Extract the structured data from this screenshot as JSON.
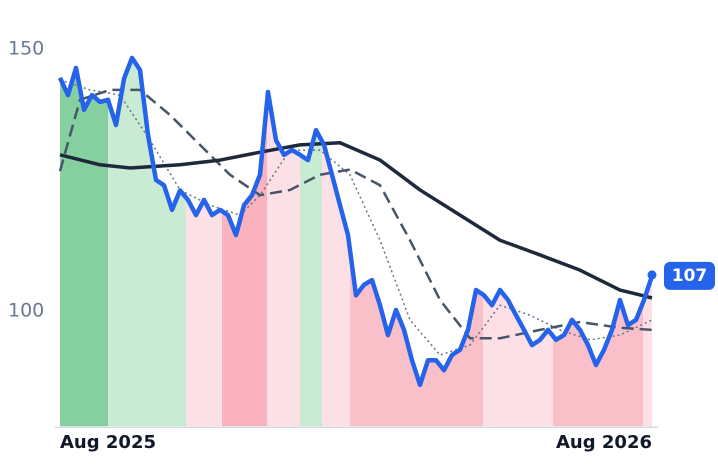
{
  "chart_data": {
    "type": "line",
    "x": [
      0,
      1,
      2,
      3,
      4,
      5,
      6,
      7,
      8,
      9,
      10,
      11,
      12,
      13,
      14,
      15,
      16,
      17,
      18,
      19,
      20,
      21,
      22,
      23,
      24,
      25,
      26,
      27,
      28,
      29,
      30,
      31,
      32,
      33,
      34,
      35,
      36,
      37,
      38,
      39,
      40,
      41,
      42,
      43,
      44,
      45,
      46,
      47,
      48,
      49,
      50,
      51,
      52,
      53,
      54,
      55,
      56,
      57,
      58,
      59,
      60,
      61,
      62,
      63,
      64,
      65,
      66,
      67,
      68,
      69,
      70,
      71,
      72,
      73,
      74
    ],
    "xlim": [
      0,
      74
    ],
    "xticks": [
      {
        "value": 0,
        "label": "Aug 2025"
      },
      {
        "value": 74,
        "label": "Aug 2026"
      }
    ],
    "ylim": [
      78,
      152
    ],
    "yticks": [
      100,
      150
    ],
    "series": [
      {
        "color": "#2563eb",
        "style": "solid",
        "width": 4.5,
        "values": [
          144.5,
          141.2,
          146.4,
          138.4,
          141.2,
          139.9,
          140.3,
          135.5,
          144.3,
          148.3,
          146,
          133.6,
          125,
          124,
          119.3,
          123,
          121.2,
          118.3,
          121.2,
          118.3,
          119.3,
          118.3,
          114.5,
          120.2,
          122.1,
          126,
          141.8,
          132.6,
          129.8,
          130.7,
          129.8,
          128.8,
          134.5,
          131.7,
          126,
          120.2,
          114.5,
          103,
          105,
          105.9,
          101.1,
          95.4,
          100.2,
          96.4,
          90.6,
          85.9,
          90.6,
          90.6,
          88.7,
          91.6,
          92.6,
          96.4,
          104,
          103,
          101.1,
          104,
          102.1,
          99.2,
          96.4,
          93.5,
          94.5,
          96.4,
          94.5,
          95.4,
          98.3,
          96.4,
          93.5,
          89.7,
          92.6,
          96.4,
          102.1,
          97.3,
          98.3,
          102.1,
          106.7
        ]
      },
      {
        "color": "#1e293b",
        "style": "solid",
        "width": 3.5,
        "x": [
          0,
          5,
          8.75,
          15,
          20,
          25,
          30,
          35,
          40,
          45,
          50,
          55,
          60,
          65,
          70,
          74
        ],
        "values": [
          129.8,
          127.9,
          127.3,
          127.9,
          128.8,
          130.3,
          131.7,
          132.1,
          128.8,
          123.1,
          118.3,
          113.5,
          110.7,
          107.8,
          104,
          102.5
        ]
      },
      {
        "color": "#475569",
        "style": "dashed",
        "width": 2.5,
        "x": [
          0,
          2.5,
          6.25,
          10,
          13.75,
          17.5,
          21.25,
          25,
          28.75,
          32.5,
          36.25,
          40,
          43.75,
          47.5,
          51.25,
          55,
          60,
          65,
          70,
          74
        ],
        "values": [
          126.7,
          140.3,
          142.2,
          142.2,
          137.4,
          131.7,
          126,
          122.1,
          123.1,
          126,
          127,
          124,
          113.5,
          102.1,
          94.8,
          94.8,
          96.4,
          97.9,
          96.8,
          96.4
        ]
      },
      {
        "color": "#64748b",
        "style": "dotted",
        "width": 1.5,
        "x": [
          0,
          3.75,
          7.5,
          11.25,
          15,
          18.75,
          22.5,
          25,
          28.75,
          32.5,
          36.25,
          40,
          43.75,
          47.5,
          51.25,
          55,
          58.75,
          62.5,
          66.25,
          70,
          74
        ],
        "values": [
          144.1,
          142.2,
          141.2,
          132.6,
          123.1,
          120.2,
          118.3,
          122.1,
          130.7,
          130.7,
          126,
          113.5,
          98.3,
          91.6,
          93.5,
          101.1,
          99.2,
          96.4,
          94.5,
          95.4,
          98.3
        ]
      }
    ],
    "regimes": [
      {
        "start": 0,
        "end": 6,
        "color": "#86cf9f"
      },
      {
        "start": 6,
        "end": 15.75,
        "color": "#c9ead3"
      },
      {
        "start": 15.75,
        "end": 20.25,
        "color": "#fde0e5"
      },
      {
        "start": 20.25,
        "end": 25.9,
        "color": "#f9b2be"
      },
      {
        "start": 25.9,
        "end": 30,
        "color": "#fde0e5"
      },
      {
        "start": 30,
        "end": 32.75,
        "color": "#c9ead3"
      },
      {
        "start": 32.75,
        "end": 36.25,
        "color": "#fde0e5"
      },
      {
        "start": 36.25,
        "end": 52.9,
        "color": "#f9c0ca"
      },
      {
        "start": 52.9,
        "end": 61.6,
        "color": "#fde0e5"
      },
      {
        "start": 61.6,
        "end": 72.9,
        "color": "#f9c0ca"
      },
      {
        "start": 72.9,
        "end": 74,
        "color": "#fde0e5"
      }
    ],
    "last_label": 107
  }
}
